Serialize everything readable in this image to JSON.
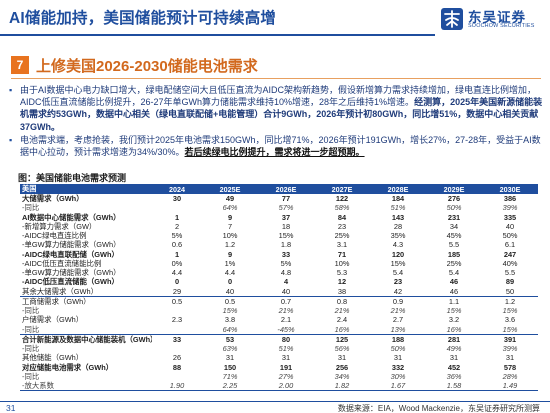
{
  "header": {
    "title": "AI储能加持，美国储能预计可持续高增",
    "logo_cn": "东吴证券",
    "logo_en": "SOOCHOW SECURITIES",
    "colors": {
      "brand": "#1f4e9e",
      "accent": "#e8731f"
    }
  },
  "section": {
    "number": "7",
    "title": "上修美国2026-2030储能电池需求"
  },
  "bullets": [
    {
      "icon": "bullet-dot",
      "text_a": "由于AI数据中心电力缺口增大，绿电配储空间大且低压直流为AIDC架构新趋势，假设新增算力需求持续增加，绿电直连比例增加，AIDC低压直流储能比例提升，26-27年单GWh算力储能需求维持10%增速，28年之后维持1%增速。",
      "text_b": "经测算，2025年美国新源储能装机需求约53GWh，数据中心相关（绿电直联配储+电能管理）合计9GWh，2026年预计初80GWh，同比增51%，数据中心相关贡献37GWh。"
    },
    {
      "icon": "bullet-dot",
      "text_a": "电池需求端，考虑抢装，我们预计2025年电池需求150GWh，同比增71%，2026年预计191GWh，增长27%，27-28年，受益于AI数据中心拉动，预计需求增速为34%/30%。",
      "text_b": "若后续绿电比例提升，需求将进一步超预期。"
    }
  ],
  "table": {
    "title": "图：美国储能电池需求预测",
    "columns": [
      "美国",
      "2024",
      "2025E",
      "2026E",
      "2027E",
      "2028E",
      "2029E",
      "2030E"
    ],
    "rows": [
      {
        "cells": [
          "大储需求（GWh）",
          "30",
          "49",
          "77",
          "122",
          "184",
          "276",
          "386"
        ],
        "style": "bold"
      },
      {
        "cells": [
          "-同比",
          "",
          "64%",
          "57%",
          "58%",
          "51%",
          "50%",
          "39%"
        ],
        "style": "sub"
      },
      {
        "cells": [
          "AI数据中心储能需求（GWh）",
          "1",
          "9",
          "37",
          "84",
          "143",
          "231",
          "335"
        ],
        "style": "bold"
      },
      {
        "cells": [
          "-新增算力需求（GW）",
          "2",
          "7",
          "18",
          "23",
          "28",
          "34",
          "40"
        ],
        "style": ""
      },
      {
        "cells": [
          "-AIDC绿电直连比例",
          "5%",
          "10%",
          "15%",
          "25%",
          "35%",
          "45%",
          "50%"
        ],
        "style": ""
      },
      {
        "cells": [
          "-单GW算力储能需求（GWh）",
          "0.6",
          "1.2",
          "1.8",
          "3.1",
          "4.3",
          "5.5",
          "6.1"
        ],
        "style": ""
      },
      {
        "cells": [
          "-AIDC绿电直联配储（GWh）",
          "1",
          "9",
          "33",
          "71",
          "120",
          "185",
          "247"
        ],
        "style": "bold"
      },
      {
        "cells": [
          "-AIDC低压直流储能比例",
          "0%",
          "1%",
          "5%",
          "10%",
          "15%",
          "25%",
          "40%"
        ],
        "style": ""
      },
      {
        "cells": [
          "-单GW算力储能需求（GWh）",
          "4.4",
          "4.4",
          "4.8",
          "5.3",
          "5.4",
          "5.4",
          "5.5"
        ],
        "style": ""
      },
      {
        "cells": [
          "-AIDC低压直流储能（GWh）",
          "0",
          "0",
          "4",
          "12",
          "23",
          "46",
          "89"
        ],
        "style": "bold"
      },
      {
        "cells": [
          "其余大储需求（GWh）",
          "29",
          "40",
          "40",
          "38",
          "42",
          "46",
          "50"
        ],
        "style": "sep"
      },
      {
        "cells": [
          "工商储需求（GWh）",
          "0.5",
          "0.5",
          "0.7",
          "0.8",
          "0.9",
          "1.1",
          "1.2"
        ],
        "style": ""
      },
      {
        "cells": [
          "-同比",
          "",
          "15%",
          "21%",
          "21%",
          "21%",
          "15%",
          "15%"
        ],
        "style": "sub"
      },
      {
        "cells": [
          "户储需求（GWh）",
          "2.3",
          "3.8",
          "2.1",
          "2.4",
          "2.7",
          "3.2",
          "3.6"
        ],
        "style": ""
      },
      {
        "cells": [
          "-同比",
          "",
          "64%",
          "-45%",
          "16%",
          "13%",
          "16%",
          "15%"
        ],
        "style": "sub sep"
      },
      {
        "cells": [
          "合计新能源及数据中心储能装机（GWh）",
          "33",
          "53",
          "80",
          "125",
          "188",
          "281",
          "391"
        ],
        "style": "bold"
      },
      {
        "cells": [
          "-同比",
          "",
          "63%",
          "51%",
          "56%",
          "50%",
          "49%",
          "39%"
        ],
        "style": "sub"
      },
      {
        "cells": [
          "其他储能（GWh）",
          "26",
          "31",
          "31",
          "31",
          "31",
          "31",
          "31"
        ],
        "style": ""
      },
      {
        "cells": [
          "对应储能电池需求（GWh）",
          "88",
          "150",
          "191",
          "256",
          "332",
          "452",
          "578"
        ],
        "style": "bold"
      },
      {
        "cells": [
          "-同比",
          "",
          "71%",
          "27%",
          "34%",
          "30%",
          "36%",
          "28%"
        ],
        "style": "sub"
      },
      {
        "cells": [
          "-放大系数",
          "1.90",
          "2.25",
          "2.00",
          "1.82",
          "1.67",
          "1.58",
          "1.49"
        ],
        "style": "sub last"
      }
    ]
  },
  "footer": {
    "page": "31",
    "source": "数据来源：EIA，Wood Mackenzie，东吴证券研究所测算"
  }
}
